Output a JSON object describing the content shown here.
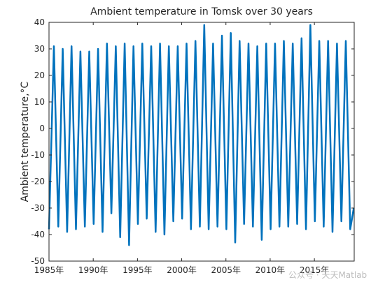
{
  "chart_data": {
    "type": "line",
    "title": "Ambient temperature in Tomsk over 30 years",
    "xlabel": "",
    "ylabel": "Ambient temperature,°C",
    "x_tick_labels": [
      "1985年",
      "1990年",
      "1995年",
      "2000年",
      "2005年",
      "2010年",
      "2015年"
    ],
    "x_tick_years": [
      1985,
      1990,
      1995,
      2000,
      2005,
      2010,
      2015
    ],
    "xlim": [
      1985,
      2019.5
    ],
    "ylim": [
      -50,
      40
    ],
    "y_ticks": [
      -50,
      -40,
      -30,
      -20,
      -10,
      0,
      10,
      20,
      30,
      40
    ],
    "grid": false,
    "legend": "none",
    "series_color": "#0072BD",
    "series": [
      {
        "x": [
          1985.0,
          1985.55,
          1986.05,
          1986.55,
          1987.05,
          1987.55,
          1988.05,
          1988.55,
          1989.05,
          1989.55,
          1990.05,
          1990.55,
          1991.05,
          1991.55,
          1992.05,
          1992.55,
          1993.05,
          1993.55,
          1994.05,
          1994.55,
          1995.05,
          1995.55,
          1996.05,
          1996.55,
          1997.05,
          1997.55,
          1998.05,
          1998.55,
          1999.05,
          1999.55,
          2000.05,
          2000.55,
          2001.05,
          2001.55,
          2002.05,
          2002.55,
          2003.05,
          2003.55,
          2004.05,
          2004.55,
          2005.05,
          2005.55,
          2006.05,
          2006.55,
          2007.05,
          2007.55,
          2008.05,
          2008.55,
          2009.05,
          2009.55,
          2010.05,
          2010.55,
          2011.05,
          2011.55,
          2012.05,
          2012.55,
          2013.05,
          2013.55,
          2014.05,
          2014.55,
          2015.05,
          2015.55,
          2016.05,
          2016.55,
          2017.05,
          2017.55,
          2018.05,
          2018.55,
          2019.05,
          2019.45
        ],
        "y": [
          -38,
          31,
          -37,
          30,
          -39,
          31,
          -38,
          29,
          -37,
          29,
          -36,
          30,
          -39,
          32,
          -32,
          31,
          -41,
          32,
          -44,
          31,
          -36,
          32,
          -34,
          31,
          -39,
          32,
          -40,
          31,
          -35,
          31,
          -34,
          32,
          -38,
          33,
          -37,
          39,
          -38,
          32,
          -37,
          35,
          -38,
          36,
          -43,
          33,
          -36,
          32,
          -37,
          31,
          -42,
          32,
          -38,
          32,
          -37,
          33,
          -37,
          32,
          -36,
          34,
          -38,
          39,
          -35,
          33,
          -37,
          33,
          -39,
          32,
          -35,
          33,
          -38,
          -30
        ]
      }
    ]
  },
  "watermark_text": "公众号 · 天天Matlab"
}
